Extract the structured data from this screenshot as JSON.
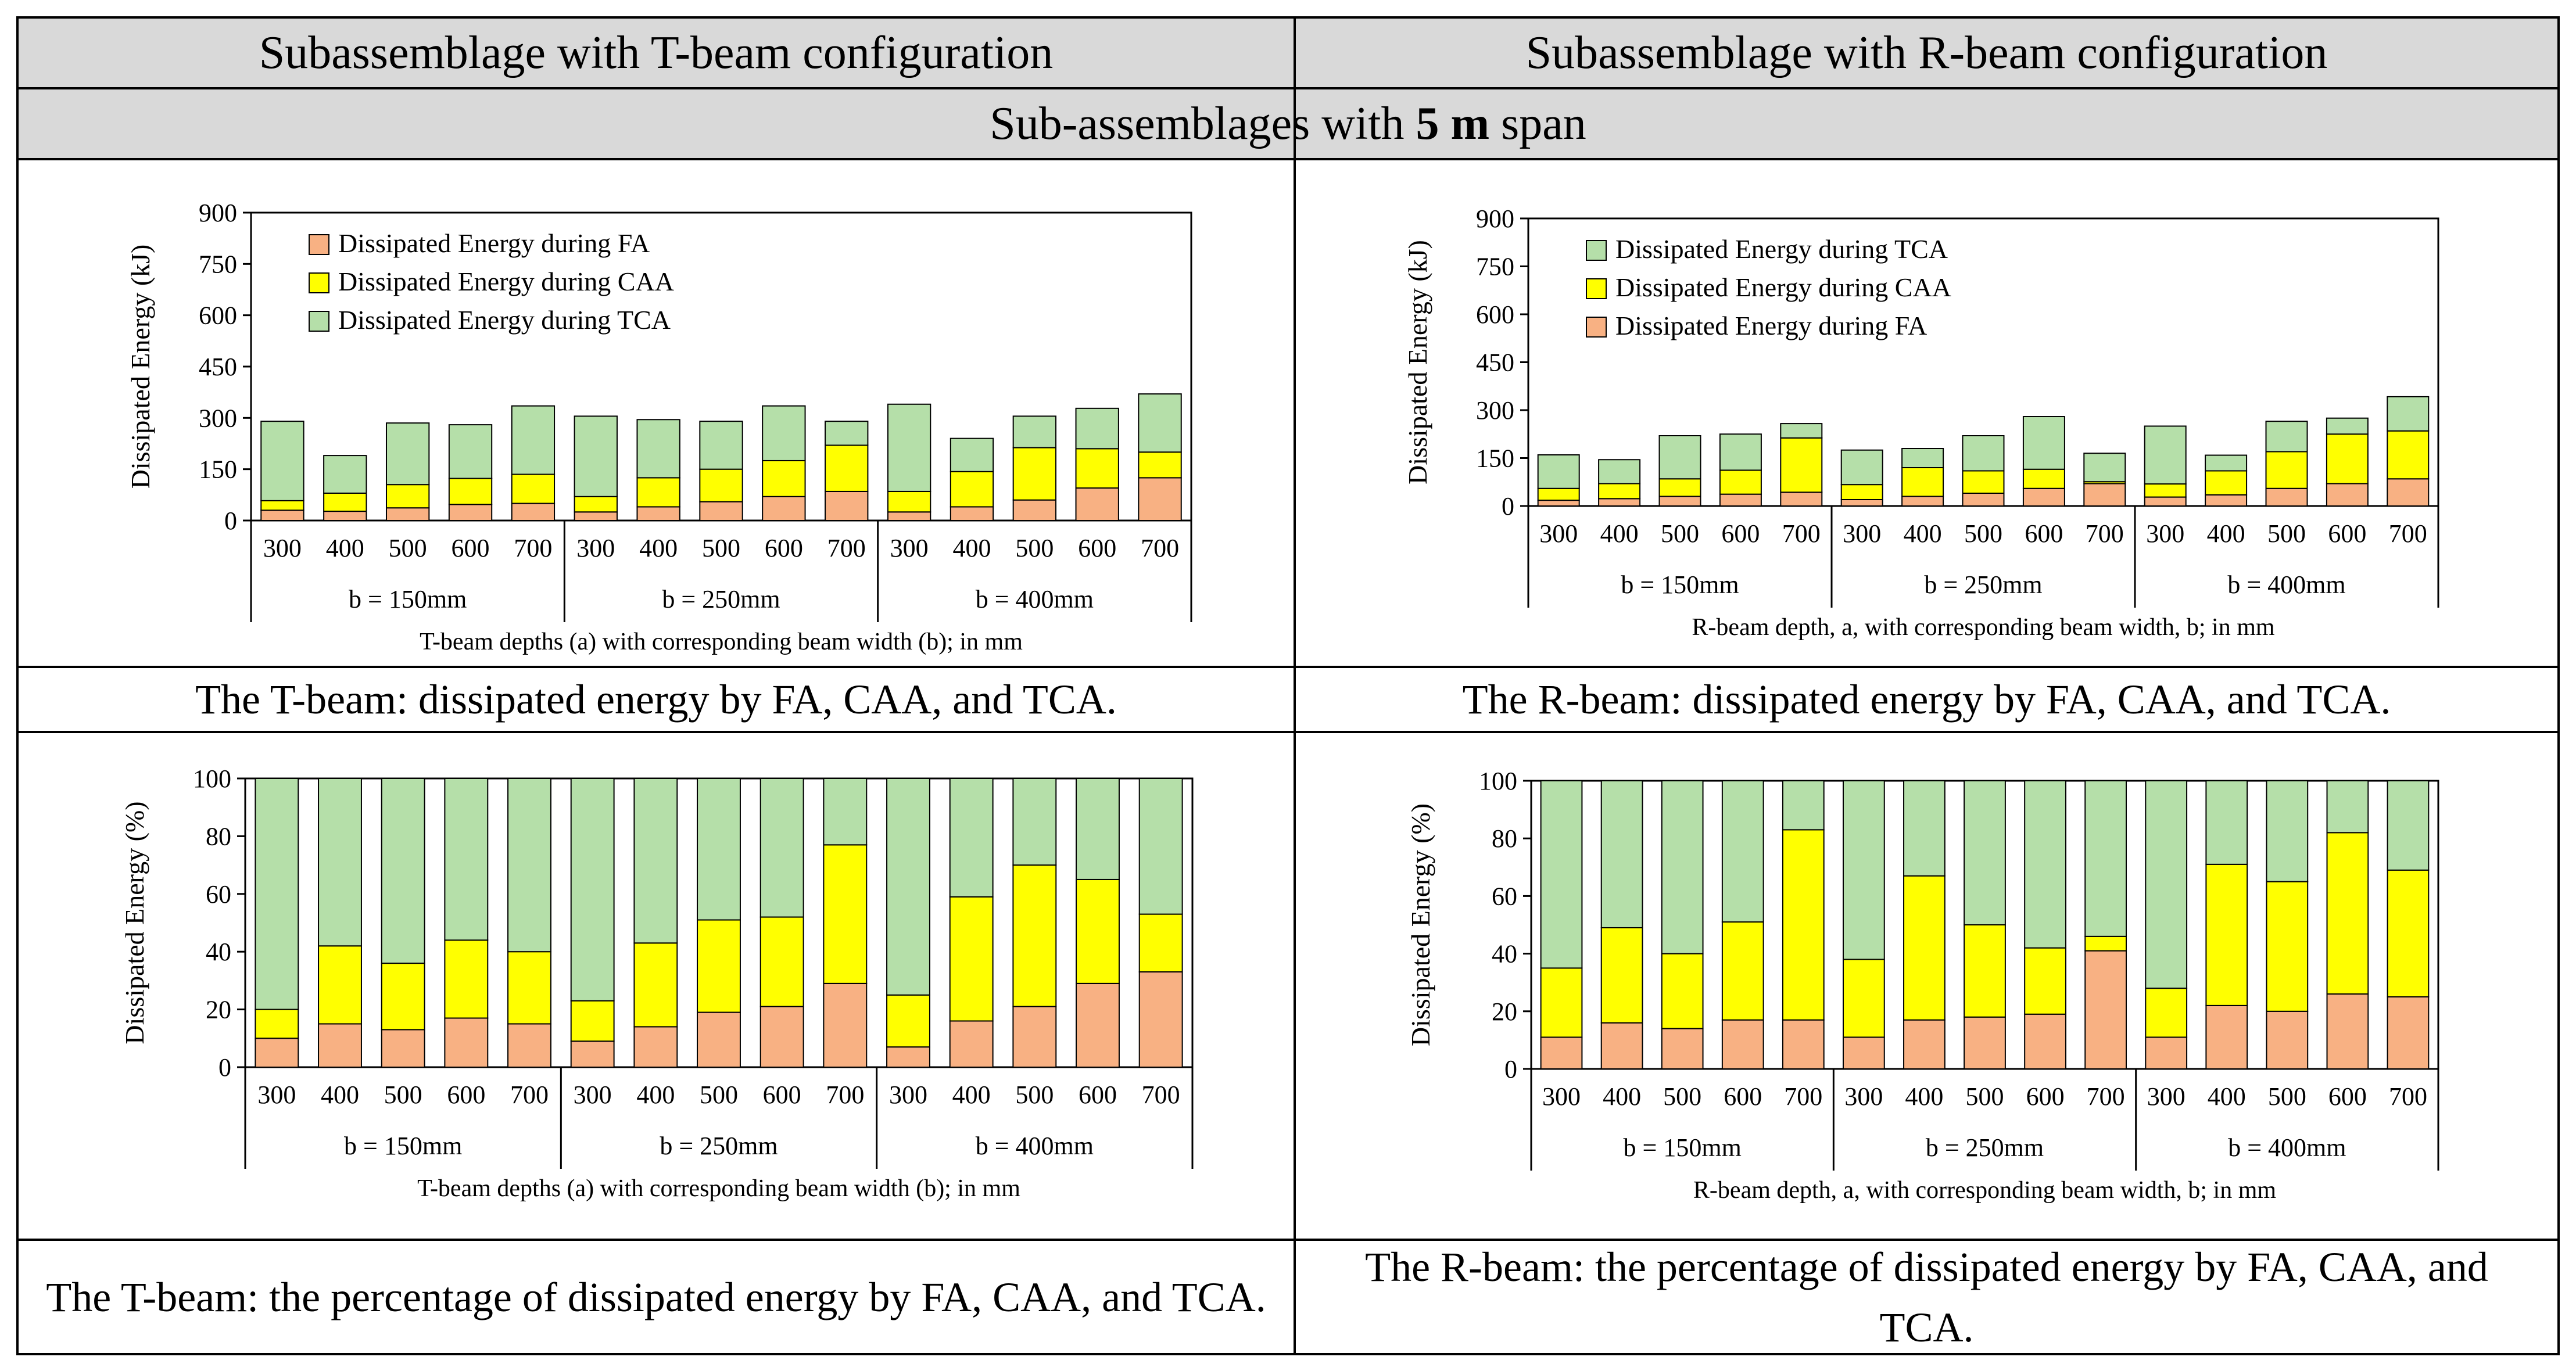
{
  "header": {
    "left_title": "Subassemblage with T-beam configuration",
    "right_title": "Subassemblage with R-beam configuration",
    "span_prefix": "Sub-assemblages with ",
    "span_bold": "5 m",
    "span_suffix": " span"
  },
  "captions": {
    "t_energy": "The T-beam: dissipated energy by FA, CAA, and TCA.",
    "r_energy": "The R-beam: dissipated energy by FA, CAA, and TCA.",
    "t_percent": "The T-beam: the percentage of dissipated energy by FA, CAA, and TCA.",
    "r_percent": "The R-beam: the percentage of dissipated energy by FA, CAA, and TCA."
  },
  "colors": {
    "fa": "#f8b183",
    "caa": "#ffff00",
    "tca": "#b5dfa9"
  },
  "chart_data": [
    {
      "id": "t_energy",
      "type": "bar",
      "stacked": true,
      "ylabel": "Dissipated Energy (kJ)",
      "xlabel": "T-beam depths (a) with corresponding beam width (b); in mm",
      "ylim": [
        0,
        900
      ],
      "yticks": [
        0,
        150,
        300,
        450,
        600,
        750,
        900
      ],
      "categories": [
        "300",
        "400",
        "500",
        "600",
        "700",
        "300",
        "400",
        "500",
        "600",
        "700",
        "300",
        "400",
        "500",
        "600",
        "700"
      ],
      "groups": [
        "b = 150mm",
        "b = 250mm",
        "b = 400mm"
      ],
      "legend_position": "top-left",
      "legend": [
        "Dissipated Energy during FA",
        "Dissipated Energy during CAA",
        "Dissipated Energy during TCA"
      ],
      "series": [
        {
          "name": "Dissipated Energy during FA",
          "key": "fa",
          "values": [
            30,
            27,
            37,
            47,
            50,
            25,
            40,
            55,
            70,
            85,
            25,
            40,
            60,
            95,
            125
          ]
        },
        {
          "name": "Dissipated Energy during CAA",
          "key": "caa",
          "values": [
            28,
            53,
            68,
            76,
            85,
            45,
            85,
            95,
            105,
            135,
            60,
            103,
            153,
            115,
            75
          ]
        },
        {
          "name": "Dissipated Energy during TCA",
          "key": "tca",
          "values": [
            232,
            110,
            180,
            157,
            200,
            235,
            170,
            140,
            160,
            70,
            255,
            97,
            92,
            118,
            170
          ]
        }
      ]
    },
    {
      "id": "r_energy",
      "type": "bar",
      "stacked": true,
      "ylabel": "Dissipated Energy (kJ)",
      "xlabel": "R-beam depth, a, with corresponding beam width, b; in mm",
      "ylim": [
        0,
        900
      ],
      "yticks": [
        0,
        150,
        300,
        450,
        600,
        750,
        900
      ],
      "categories": [
        "300",
        "400",
        "500",
        "600",
        "700",
        "300",
        "400",
        "500",
        "600",
        "700",
        "300",
        "400",
        "500",
        "600",
        "700"
      ],
      "groups": [
        "b = 150mm",
        "b = 250mm",
        "b = 400mm"
      ],
      "legend_position": "top-left",
      "legend": [
        "Dissipated Energy during TCA",
        "Dissipated Energy during CAA",
        "Dissipated Energy during FA"
      ],
      "series": [
        {
          "name": "Dissipated Energy during FA",
          "key": "fa",
          "values": [
            18,
            23,
            30,
            37,
            43,
            20,
            30,
            40,
            55,
            70,
            28,
            35,
            55,
            70,
            85
          ]
        },
        {
          "name": "Dissipated Energy during CAA",
          "key": "caa",
          "values": [
            37,
            47,
            55,
            75,
            170,
            47,
            90,
            70,
            60,
            6,
            41,
            75,
            115,
            155,
            150
          ]
        },
        {
          "name": "Dissipated Energy during TCA",
          "key": "tca",
          "values": [
            105,
            75,
            135,
            113,
            45,
            108,
            60,
            110,
            165,
            89,
            181,
            49,
            95,
            50,
            107
          ]
        }
      ]
    },
    {
      "id": "t_percent",
      "type": "bar",
      "stacked": true,
      "ylabel": "Dissipated Energy (%)",
      "xlabel": "T-beam depths (a) with corresponding beam width (b); in mm",
      "ylim": [
        0,
        100
      ],
      "yticks": [
        0,
        20,
        40,
        60,
        80,
        100
      ],
      "categories": [
        "300",
        "400",
        "500",
        "600",
        "700",
        "300",
        "400",
        "500",
        "600",
        "700",
        "300",
        "400",
        "500",
        "600",
        "700"
      ],
      "groups": [
        "b = 150mm",
        "b = 250mm",
        "b = 400mm"
      ],
      "series": [
        {
          "name": "FA",
          "key": "fa",
          "values": [
            10,
            15,
            13,
            17,
            15,
            9,
            14,
            19,
            21,
            29,
            7,
            16,
            21,
            29,
            33
          ]
        },
        {
          "name": "CAA",
          "key": "caa",
          "values": [
            10,
            27,
            23,
            27,
            25,
            14,
            29,
            32,
            31,
            48,
            18,
            43,
            49,
            36,
            20
          ]
        },
        {
          "name": "TCA",
          "key": "tca",
          "values": [
            80,
            58,
            64,
            56,
            60,
            77,
            57,
            49,
            48,
            23,
            75,
            41,
            30,
            35,
            47
          ]
        }
      ]
    },
    {
      "id": "r_percent",
      "type": "bar",
      "stacked": true,
      "ylabel": "Dissipated Energy (%)",
      "xlabel": "R-beam depth, a, with corresponding beam width, b; in mm",
      "ylim": [
        0,
        100
      ],
      "yticks": [
        0,
        20,
        40,
        60,
        80,
        100
      ],
      "categories": [
        "300",
        "400",
        "500",
        "600",
        "700",
        "300",
        "400",
        "500",
        "600",
        "700",
        "300",
        "400",
        "500",
        "600",
        "700"
      ],
      "groups": [
        "b = 150mm",
        "b = 250mm",
        "b = 400mm"
      ],
      "series": [
        {
          "name": "FA",
          "key": "fa",
          "values": [
            11,
            16,
            14,
            17,
            17,
            11,
            17,
            18,
            19,
            41,
            11,
            22,
            20,
            26,
            25
          ]
        },
        {
          "name": "CAA",
          "key": "caa",
          "values": [
            24,
            33,
            26,
            34,
            66,
            27,
            50,
            32,
            23,
            5,
            17,
            49,
            45,
            56,
            44
          ]
        },
        {
          "name": "TCA",
          "key": "tca",
          "values": [
            65,
            51,
            60,
            49,
            17,
            62,
            33,
            50,
            58,
            54,
            72,
            29,
            35,
            18,
            31
          ]
        }
      ]
    }
  ]
}
